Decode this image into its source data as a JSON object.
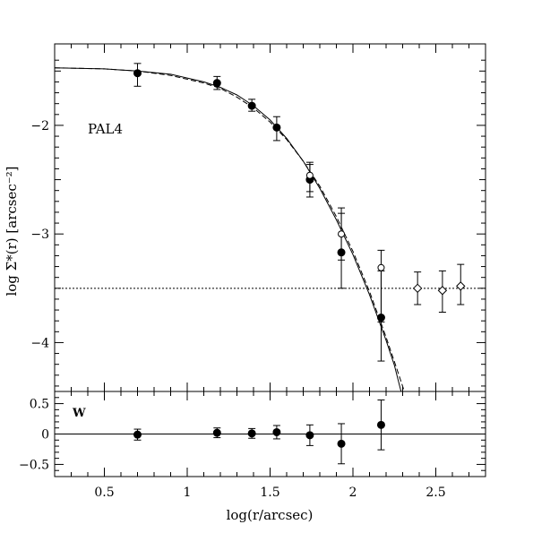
{
  "chart_data": [
    {
      "type": "scatter",
      "panel": "main",
      "ylabel": "log Σ*(r) [arcsec⁻²]",
      "annotation": "PAL4",
      "xlim": [
        0.2,
        2.8
      ],
      "ylim": [
        -4.45,
        -1.25
      ],
      "yticks": [
        -4,
        -3,
        -2
      ],
      "ytick_labels": [
        "−4",
        "−3",
        "−2"
      ],
      "background_level": -3.5,
      "series": [
        {
          "marker": "filled-circle",
          "points": [
            {
              "x": 0.7,
              "y": -1.52,
              "err_lo": 0.12,
              "err_hi": 0.09
            },
            {
              "x": 1.18,
              "y": -1.61,
              "err_lo": 0.06,
              "err_hi": 0.06
            },
            {
              "x": 1.39,
              "y": -1.82,
              "err_lo": 0.05,
              "err_hi": 0.06
            },
            {
              "x": 1.54,
              "y": -2.02,
              "err_lo": 0.12,
              "err_hi": 0.1
            },
            {
              "x": 1.74,
              "y": -2.5,
              "err_lo": 0.16,
              "err_hi": 0.14
            },
            {
              "x": 1.93,
              "y": -3.17,
              "err_lo": 0.33,
              "err_hi": 0.36
            },
            {
              "x": 2.17,
              "y": -3.77,
              "err_lo": 0.4,
              "err_hi": 0.43
            }
          ]
        },
        {
          "marker": "open-circle",
          "points": [
            {
              "x": 1.74,
              "y": -2.46,
              "err_lo": 0.15,
              "err_hi": 0.12
            },
            {
              "x": 1.93,
              "y": -3.0,
              "err_lo": 0.24,
              "err_hi": 0.24
            },
            {
              "x": 2.17,
              "y": -3.31,
              "err_lo": 0.5,
              "err_hi": 0.16
            }
          ]
        },
        {
          "marker": "open-diamond",
          "points": [
            {
              "x": 2.39,
              "y": -3.5,
              "err_lo": 0.15,
              "err_hi": 0.15
            },
            {
              "x": 2.54,
              "y": -3.52,
              "err_lo": 0.2,
              "err_hi": 0.18
            },
            {
              "x": 2.65,
              "y": -3.48,
              "err_lo": 0.17,
              "err_hi": 0.2
            }
          ]
        }
      ],
      "models": [
        {
          "style": "solid",
          "points": [
            [
              0.2,
              -1.47
            ],
            [
              0.5,
              -1.48
            ],
            [
              0.7,
              -1.5
            ],
            [
              0.9,
              -1.53
            ],
            [
              1.1,
              -1.6
            ],
            [
              1.2,
              -1.65
            ],
            [
              1.3,
              -1.72
            ],
            [
              1.4,
              -1.82
            ],
            [
              1.5,
              -1.95
            ],
            [
              1.6,
              -2.12
            ],
            [
              1.7,
              -2.33
            ],
            [
              1.8,
              -2.58
            ],
            [
              1.9,
              -2.87
            ],
            [
              2.0,
              -3.19
            ],
            [
              2.1,
              -3.56
            ],
            [
              2.2,
              -3.98
            ],
            [
              2.25,
              -4.21
            ],
            [
              2.29,
              -4.45
            ]
          ]
        },
        {
          "style": "dashed",
          "points": [
            [
              0.2,
              -1.47
            ],
            [
              0.5,
              -1.48
            ],
            [
              0.7,
              -1.5
            ],
            [
              0.9,
              -1.54
            ],
            [
              1.1,
              -1.61
            ],
            [
              1.2,
              -1.66
            ],
            [
              1.3,
              -1.74
            ],
            [
              1.4,
              -1.84
            ],
            [
              1.5,
              -1.97
            ],
            [
              1.6,
              -2.13
            ],
            [
              1.7,
              -2.33
            ],
            [
              1.8,
              -2.56
            ],
            [
              1.9,
              -2.84
            ],
            [
              2.0,
              -3.16
            ],
            [
              2.1,
              -3.53
            ],
            [
              2.2,
              -3.95
            ],
            [
              2.26,
              -4.22
            ],
            [
              2.31,
              -4.45
            ]
          ]
        }
      ]
    },
    {
      "type": "scatter",
      "panel": "residuals",
      "annotation": "W",
      "xlabel": "log(r/arcsec)",
      "xlim": [
        0.2,
        2.8
      ],
      "ylim": [
        -0.7,
        0.7
      ],
      "xticks": [
        0.5,
        1,
        1.5,
        2,
        2.5
      ],
      "xtick_labels": [
        "0.5",
        "1",
        "1.5",
        "2",
        "2.5"
      ],
      "yticks": [
        0.5,
        0,
        -0.5
      ],
      "ytick_labels": [
        "0.5",
        "0",
        "−0.5"
      ],
      "zero_line": 0,
      "points": [
        {
          "x": 0.7,
          "y": -0.01,
          "err": 0.09
        },
        {
          "x": 1.18,
          "y": 0.02,
          "err": 0.08
        },
        {
          "x": 1.39,
          "y": 0.01,
          "err": 0.08
        },
        {
          "x": 1.54,
          "y": 0.03,
          "err": 0.11
        },
        {
          "x": 1.74,
          "y": -0.02,
          "err": 0.17
        },
        {
          "x": 1.93,
          "y": -0.16,
          "err": 0.33
        },
        {
          "x": 2.17,
          "y": 0.15,
          "err": 0.41
        }
      ]
    }
  ]
}
